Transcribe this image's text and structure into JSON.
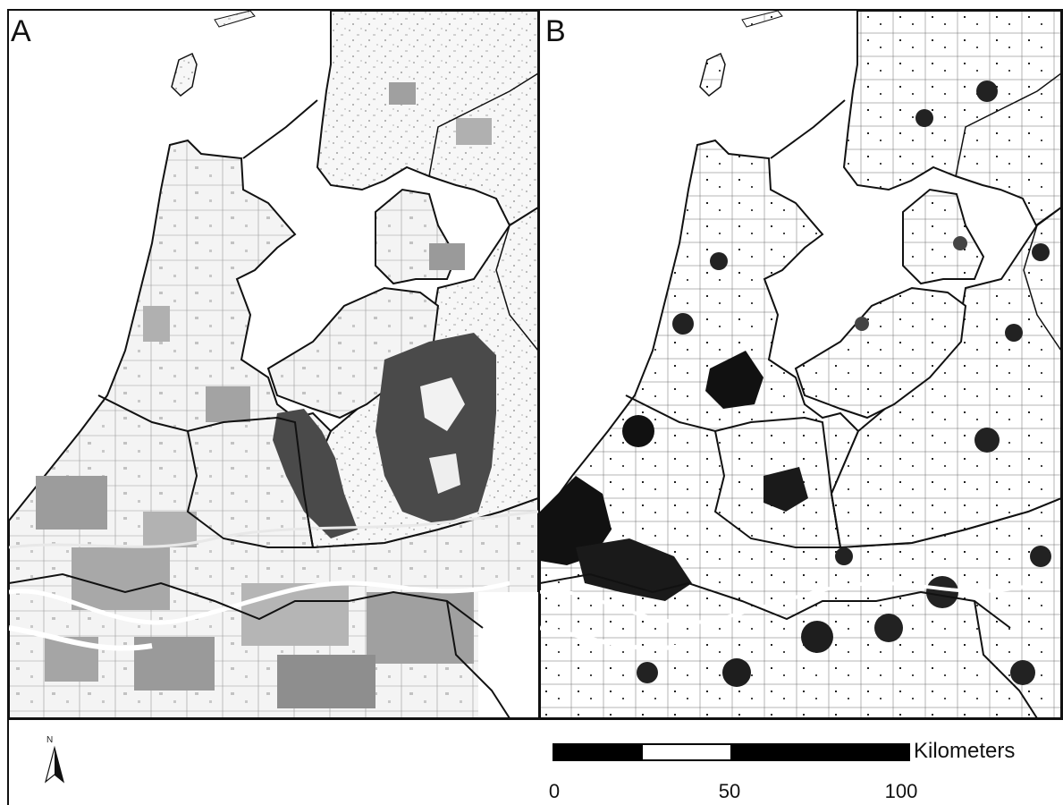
{
  "panels": [
    {
      "label": "A"
    },
    {
      "label": "B"
    }
  ],
  "north_arrow": {
    "letter": "N",
    "icon": "north-arrow-icon"
  },
  "scalebar": {
    "unit": "Kilometers",
    "ticks": [
      "0",
      "50",
      "100"
    ],
    "segments": [
      {
        "from": 0,
        "to": 25,
        "fill": "black"
      },
      {
        "from": 25,
        "to": 50,
        "fill": "white"
      },
      {
        "from": 50,
        "to": 100,
        "fill": "black"
      }
    ]
  }
}
